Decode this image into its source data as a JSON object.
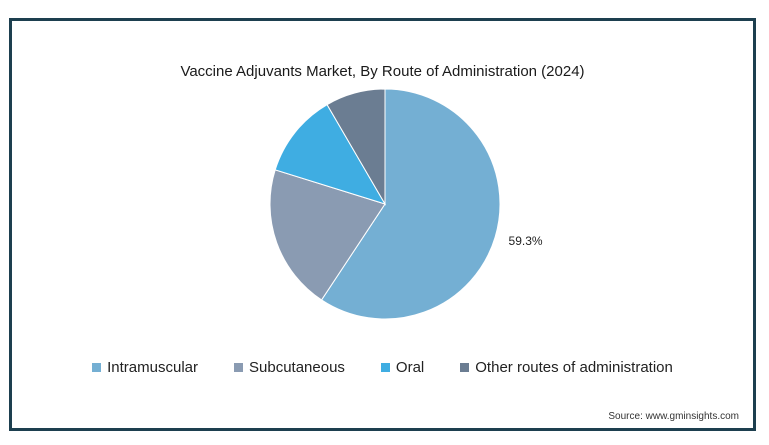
{
  "chart_data": {
    "type": "pie",
    "title": "Vaccine Adjuvants Market, By Route of Administration (2024)",
    "slices": [
      {
        "name": "Intramuscular",
        "value": 59.3,
        "label": "59.3%",
        "color": "#74afd3"
      },
      {
        "name": "Subcutaneous",
        "value": 20.5,
        "label": "",
        "color": "#8a9bb2"
      },
      {
        "name": "Oral",
        "value": 11.8,
        "label": "",
        "color": "#3fade2"
      },
      {
        "name": "Other routes of administration",
        "value": 8.4,
        "label": "",
        "color": "#6b7d92"
      }
    ],
    "legend_position": "bottom",
    "source": "Source: www.gminsights.com"
  }
}
